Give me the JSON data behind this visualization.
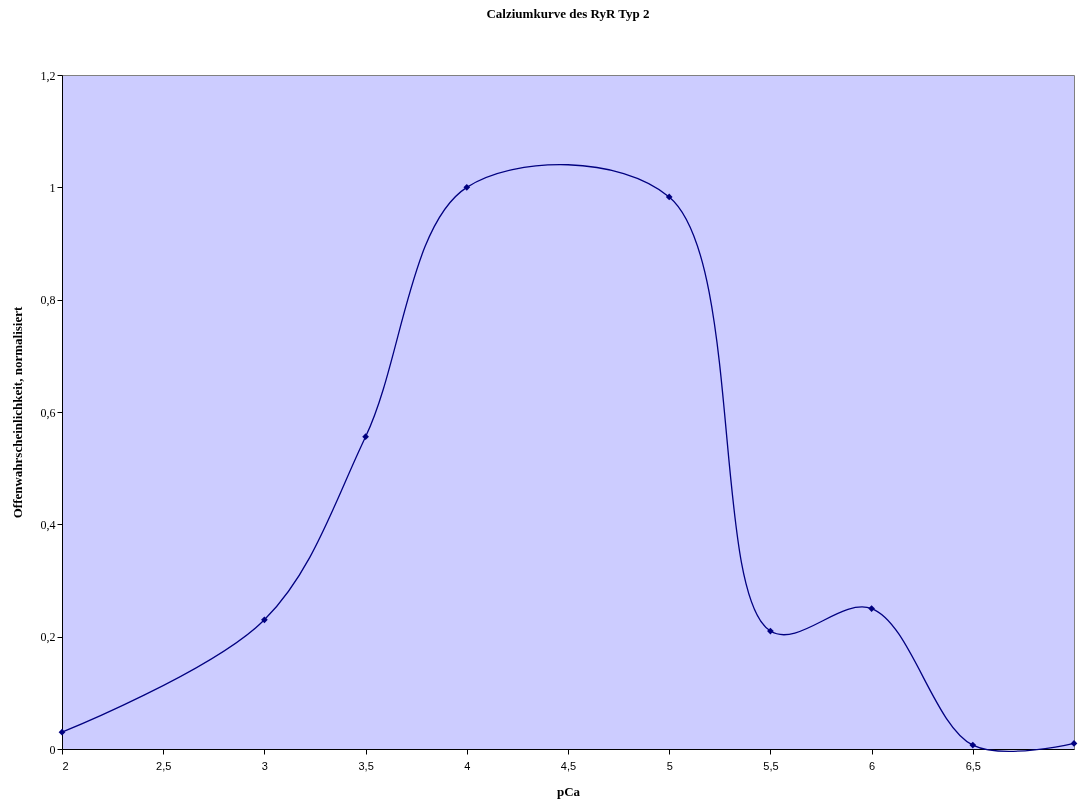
{
  "chart_data": {
    "type": "line",
    "title": "Calziumkurve des RyR Typ 2",
    "xlabel": "pCa",
    "ylabel": "Offenwahrscheinlichkeit, normalisiert",
    "x": [
      2,
      3,
      3.5,
      4,
      5,
      5.5,
      6,
      6.5,
      7
    ],
    "series": [
      {
        "color": "#000080",
        "values": [
          0.03,
          0.23,
          0.556,
          1.0,
          0.983,
          0.21,
          0.25,
          0.007,
          0.01
        ]
      }
    ],
    "xlim": [
      2,
      7
    ],
    "xticks": [
      {
        "value": 2,
        "label": "2"
      },
      {
        "value": 2.5,
        "label": "2,5"
      },
      {
        "value": 3,
        "label": "3"
      },
      {
        "value": 3.5,
        "label": "3,5"
      },
      {
        "value": 4,
        "label": "4"
      },
      {
        "value": 4.5,
        "label": "4,5"
      },
      {
        "value": 5,
        "label": "5"
      },
      {
        "value": 5.5,
        "label": "5,5"
      },
      {
        "value": 6,
        "label": "6"
      },
      {
        "value": 6.5,
        "label": "6,5"
      }
    ],
    "ylim": [
      0,
      1.2
    ],
    "yticks": [
      {
        "value": 0,
        "label": "0"
      },
      {
        "value": 0.2,
        "label": "0,2"
      },
      {
        "value": 0.4,
        "label": "0,4"
      },
      {
        "value": 0.6,
        "label": "0,6"
      },
      {
        "value": 0.8,
        "label": "0,8"
      },
      {
        "value": 1,
        "label": "1"
      },
      {
        "value": 1.2,
        "label": "1,2"
      }
    ],
    "grid": false,
    "marker": "diamond"
  }
}
